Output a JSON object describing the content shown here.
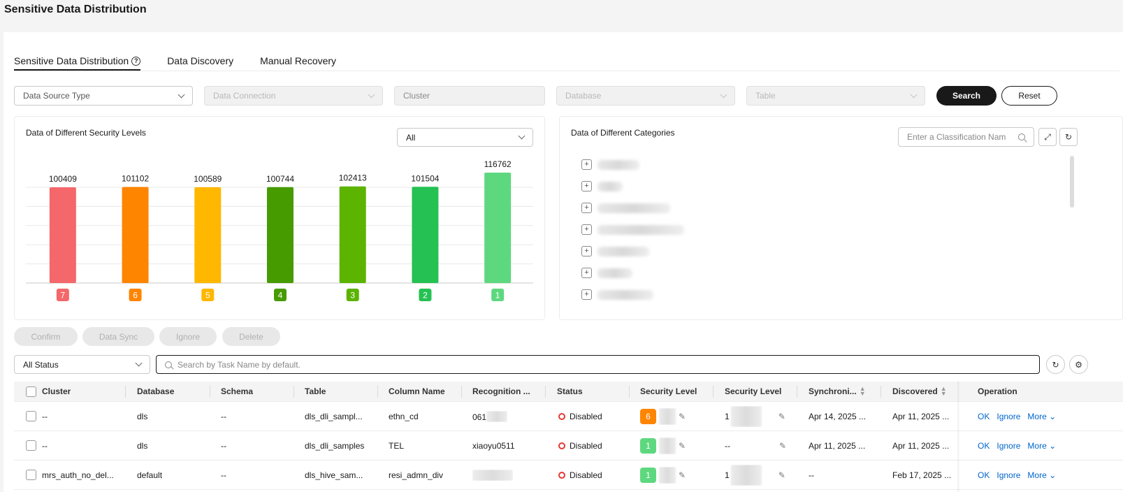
{
  "page": {
    "title": "Sensitive Data Distribution"
  },
  "tabs": [
    {
      "label": "Sensitive Data Distribution",
      "active": true
    },
    {
      "label": "Data Discovery",
      "active": false
    },
    {
      "label": "Manual Recovery",
      "active": false
    }
  ],
  "filters": {
    "data_source_type": "Data Source Type",
    "data_connection": "Data Connection",
    "cluster": "Cluster",
    "database": "Database",
    "table": "Table",
    "search_label": "Search",
    "reset_label": "Reset"
  },
  "security_levels_card": {
    "title": "Data of Different Security Levels",
    "selected": "All"
  },
  "chart_data": {
    "type": "bar",
    "categories": [
      "7",
      "6",
      "5",
      "4",
      "3",
      "2",
      "1"
    ],
    "values": [
      100409,
      101102,
      100589,
      100744,
      102413,
      101504,
      116762
    ],
    "colors": [
      "#f4676a",
      "#fe8500",
      "#ffb700",
      "#469b00",
      "#5cb300",
      "#25c253",
      "#5ed87f"
    ],
    "title": "Data of Different Security Levels",
    "xlabel": "",
    "ylabel": "",
    "grid": true
  },
  "categories_card": {
    "title": "Data of Different Categories",
    "search_placeholder": "Enter a Classification Nam"
  },
  "actions": {
    "confirm": "Confirm",
    "data_sync": "Data Sync",
    "ignore": "Ignore",
    "delete": "Delete"
  },
  "status_filter": "All Status",
  "task_search_placeholder": "Search by Task Name by default.",
  "table": {
    "columns": [
      "Cluster",
      "Database",
      "Schema",
      "Table",
      "Column Name",
      "Recognition ...",
      "Status",
      "Security Level",
      "Security Level",
      "Synchroni...",
      "Discovered",
      "Operation"
    ],
    "rows": [
      {
        "cluster": "--",
        "database": "dls",
        "schema": "--",
        "table": "dls_dli_sampl...",
        "column": "ethn_cd",
        "recognition": "061",
        "status": "Disabled",
        "level": "6",
        "level_color": "#fe8500",
        "level2": "1",
        "sync": "Apr 14, 2025 ...",
        "discovered": "Apr 11, 2025 ..."
      },
      {
        "cluster": "--",
        "database": "dls",
        "schema": "--",
        "table": "dls_dli_samples",
        "column": "TEL",
        "recognition": "xiaoyu0511",
        "status": "Disabled",
        "level": "1",
        "level_color": "#5ed87f",
        "level2": "--",
        "sync": "Apr 11, 2025 ...",
        "discovered": "Apr 11, 2025 ..."
      },
      {
        "cluster": "mrs_auth_no_del...",
        "database": "default",
        "schema": "--",
        "table": "dls_hive_sam...",
        "column": "resi_admn_div",
        "recognition": "",
        "status": "Disabled",
        "level": "1",
        "level_color": "#5ed87f",
        "level2": "1",
        "sync": "--",
        "discovered": "Feb 17, 2025 ..."
      }
    ],
    "op_ok": "OK",
    "op_ignore": "Ignore",
    "op_more": "More"
  }
}
